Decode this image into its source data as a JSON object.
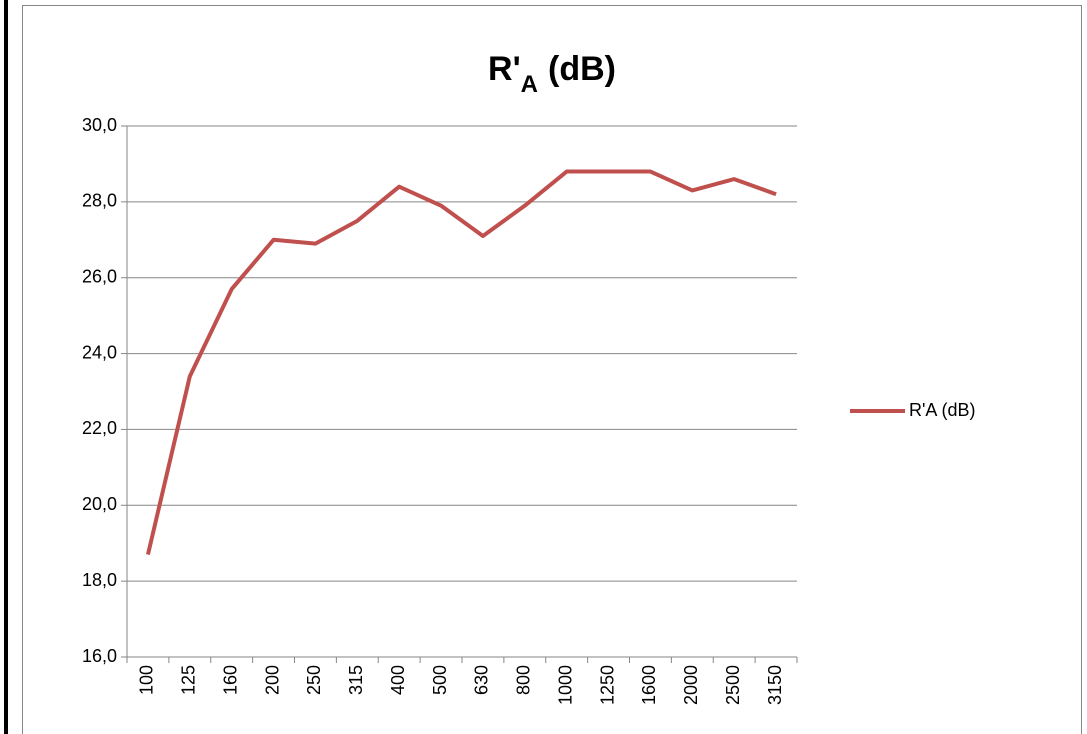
{
  "chart_data": {
    "type": "line",
    "title": "R'",
    "title_subscript": "A",
    "title_suffix": "(dB)",
    "categories": [
      "100",
      "125",
      "160",
      "200",
      "250",
      "315",
      "400",
      "500",
      "630",
      "800",
      "1000",
      "1250",
      "1600",
      "2000",
      "2500",
      "3150"
    ],
    "series": [
      {
        "name": "R'A (dB)",
        "color": "#c0504d",
        "values": [
          18.7,
          23.4,
          25.7,
          27.0,
          26.9,
          27.5,
          28.4,
          27.9,
          27.1,
          27.9,
          28.8,
          28.8,
          28.8,
          28.3,
          28.6,
          28.2
        ]
      }
    ],
    "ylim": [
      16,
      30
    ],
    "yticks": [
      {
        "value": 16,
        "label": "16,0"
      },
      {
        "value": 18,
        "label": "18,0"
      },
      {
        "value": 20,
        "label": "20,0"
      },
      {
        "value": 22,
        "label": "22,0"
      },
      {
        "value": 24,
        "label": "24,0"
      },
      {
        "value": 26,
        "label": "26,0"
      },
      {
        "value": 28,
        "label": "28,0"
      },
      {
        "value": 30,
        "label": "30,0"
      }
    ],
    "grid": true,
    "legend": "right"
  }
}
